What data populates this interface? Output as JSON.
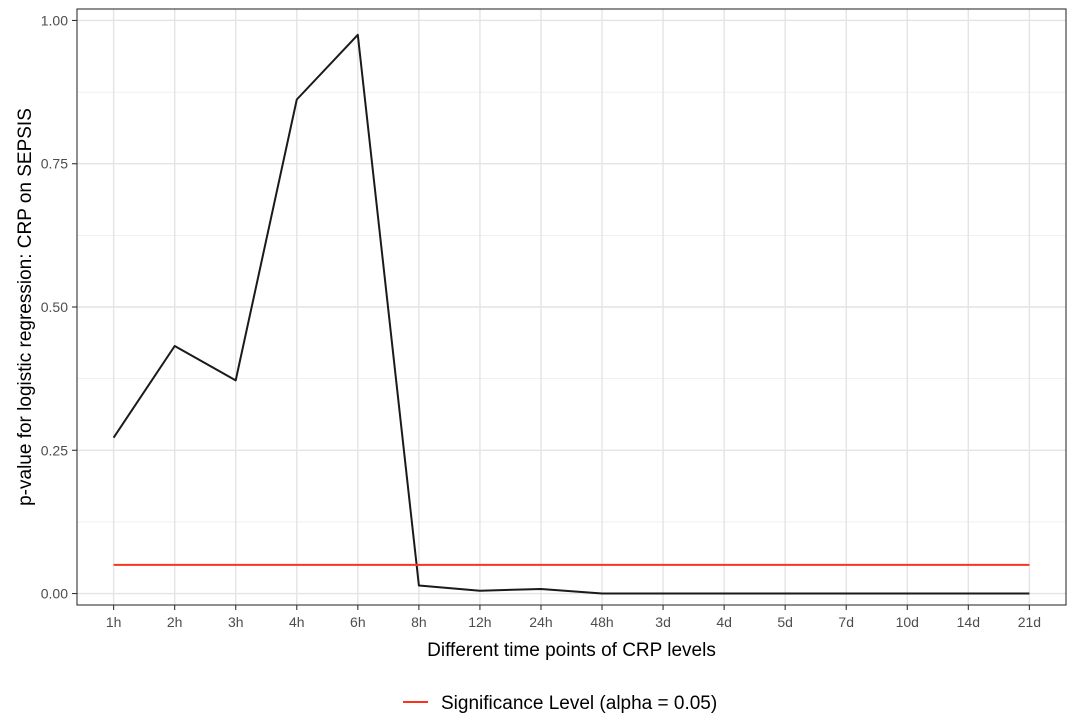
{
  "chart_data": {
    "type": "line",
    "title": "",
    "xlabel": "Different time points of CRP levels",
    "ylabel": "p-value for logistic regression: CRP on SEPSIS",
    "categories": [
      "1h",
      "2h",
      "3h",
      "4h",
      "6h",
      "8h",
      "12h",
      "24h",
      "48h",
      "3d",
      "4d",
      "5d",
      "7d",
      "10d",
      "14d",
      "21d"
    ],
    "ylim": [
      -0.02,
      1.02
    ],
    "yticks": [
      0.0,
      0.25,
      0.5,
      0.75,
      1.0
    ],
    "ytick_labels": [
      "0.00",
      "0.25",
      "0.50",
      "0.75",
      "1.00"
    ],
    "grid": true,
    "series": [
      {
        "color": "#1a1a1a",
        "values": [
          0.272,
          0.432,
          0.372,
          0.862,
          0.975,
          0.014,
          0.005,
          0.008,
          0.0,
          0.0,
          0.0,
          0.0,
          0.0,
          0.0,
          0.0,
          0.0
        ]
      },
      {
        "name": "Significance Level (alpha = 0.05)",
        "color": "#f8341f",
        "values": [
          0.05,
          0.05,
          0.05,
          0.05,
          0.05,
          0.05,
          0.05,
          0.05,
          0.05,
          0.05,
          0.05,
          0.05,
          0.05,
          0.05,
          0.05,
          0.05
        ]
      }
    ],
    "legend": {
      "position": "bottom"
    }
  }
}
